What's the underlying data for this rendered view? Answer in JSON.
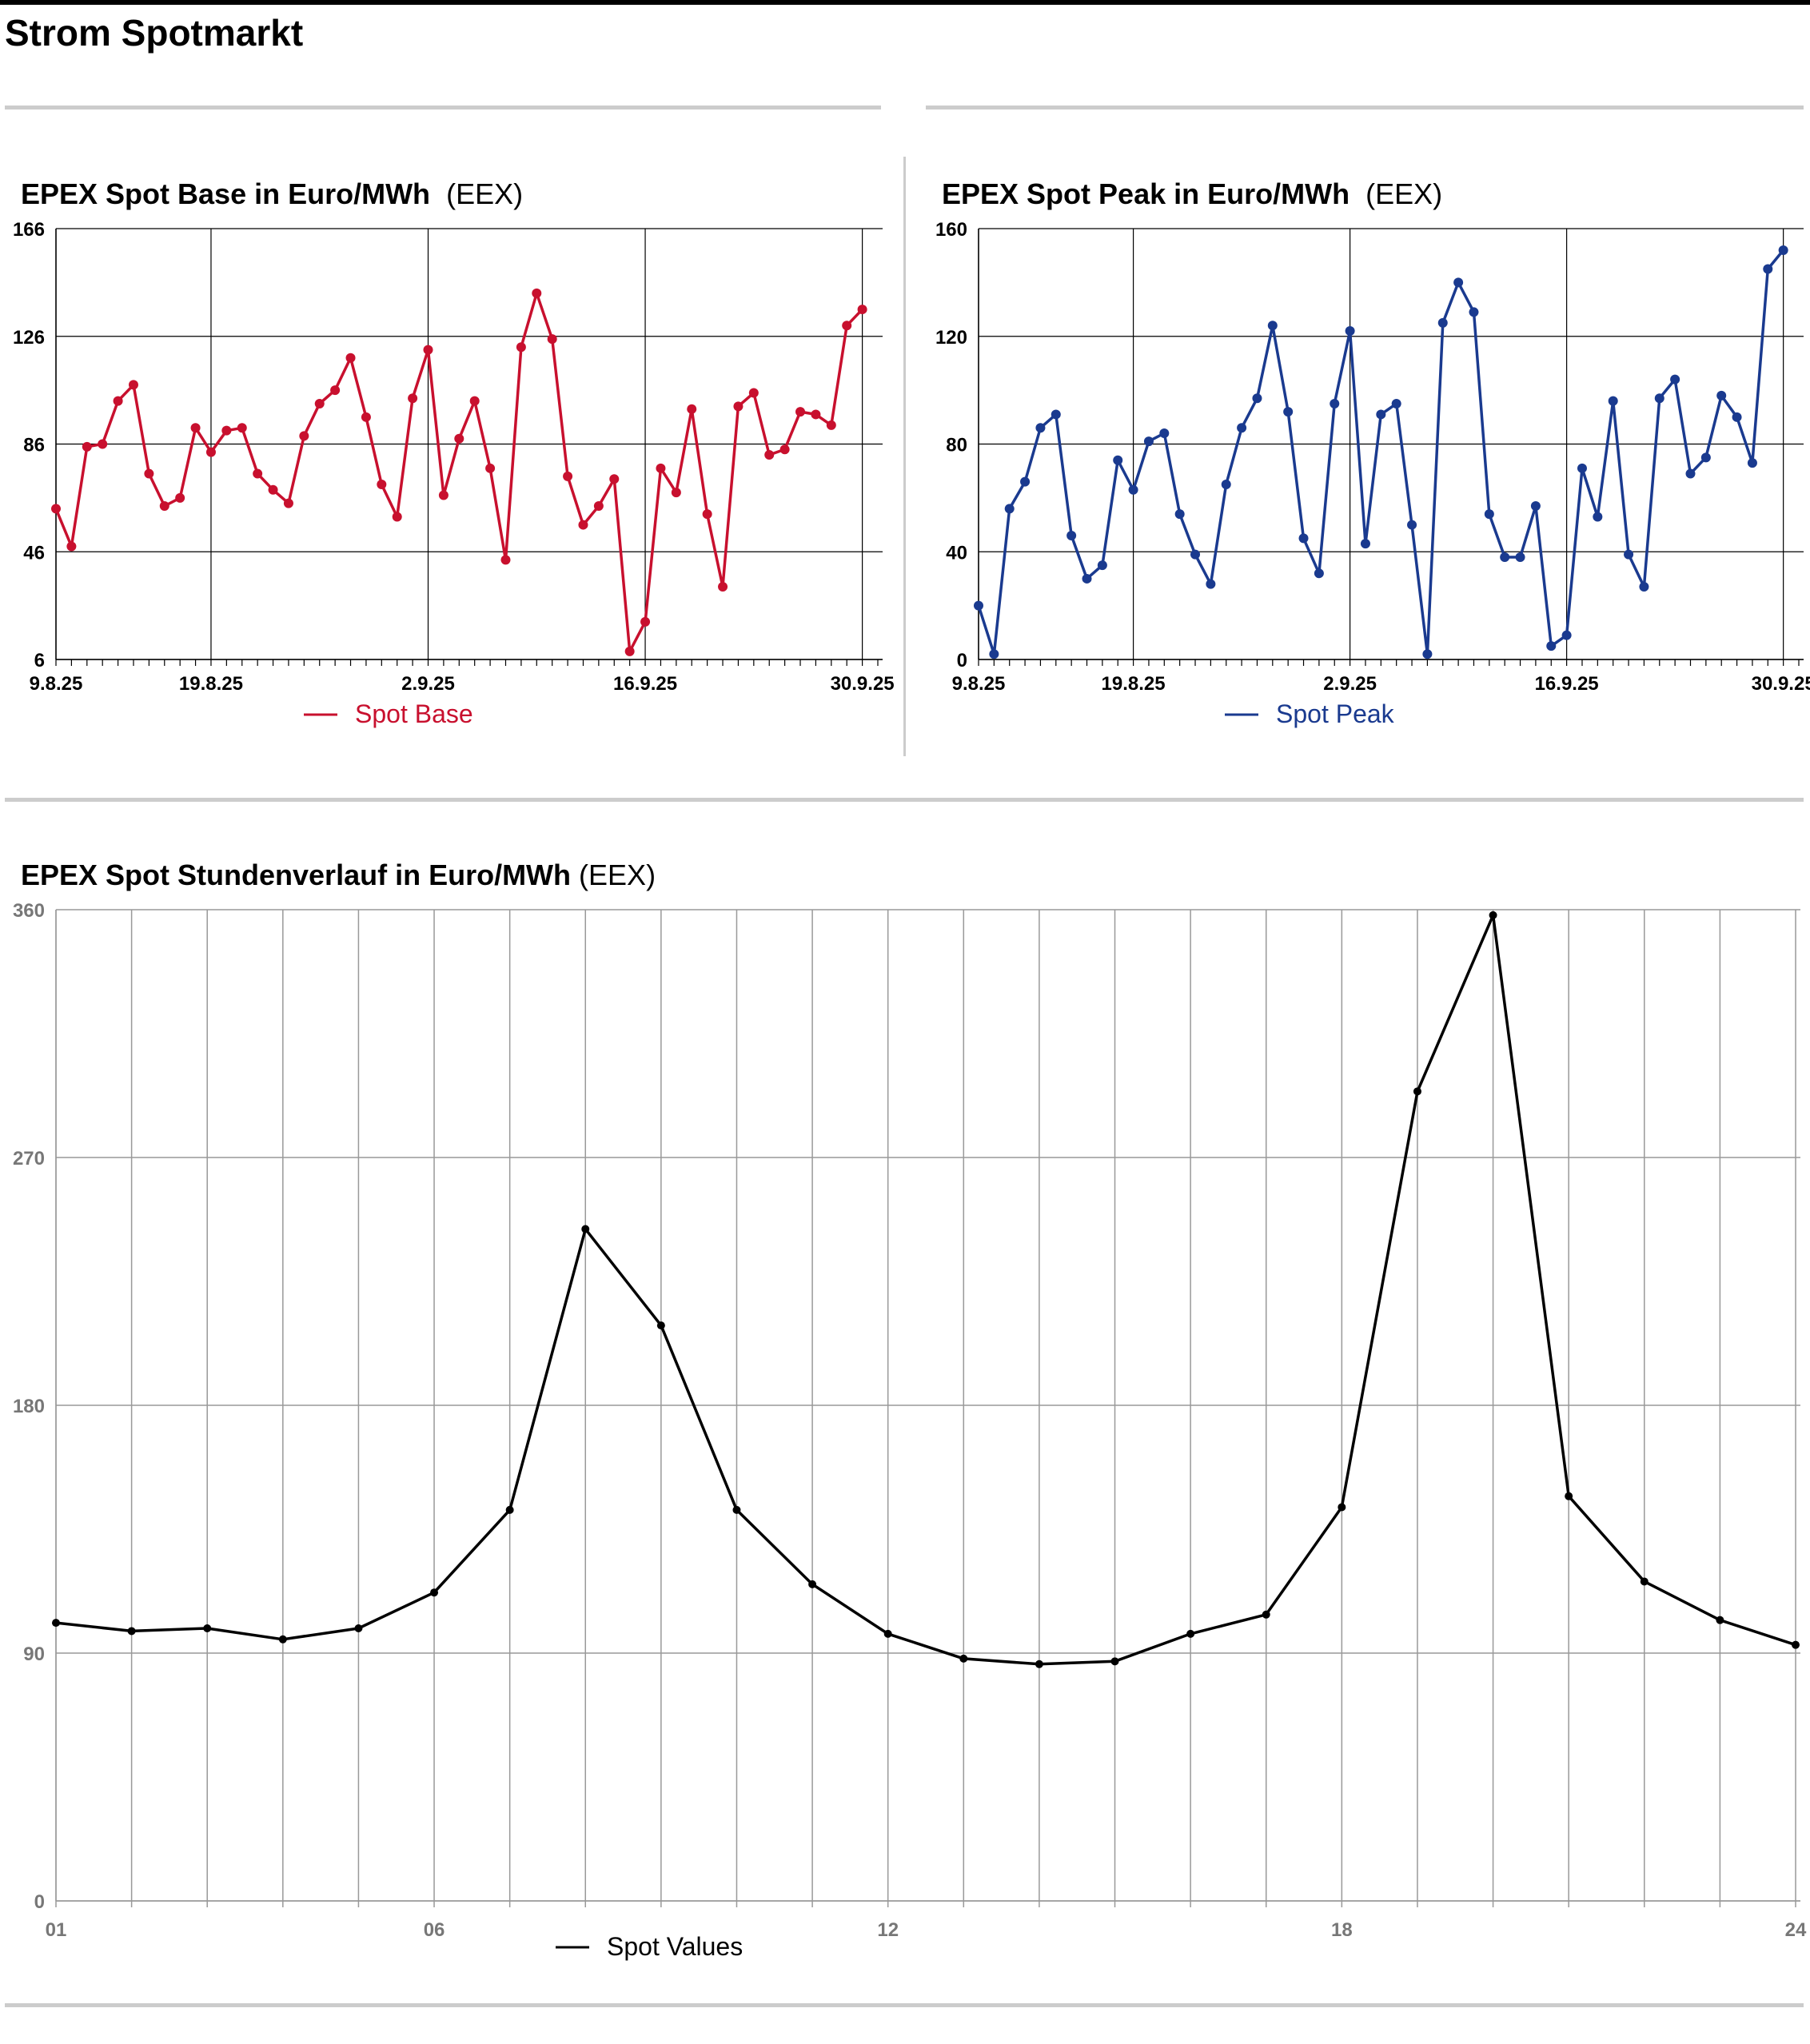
{
  "page": {
    "title": "Strom Spotmarkt"
  },
  "chart_data": [
    {
      "id": "base",
      "type": "line",
      "title": "EPEX Spot Base in Euro/MWh",
      "source": "(EEX)",
      "xlabel": "",
      "ylabel": "",
      "x_ticks": [
        "9.8.25",
        "19.8.25",
        "2.9.25",
        "16.9.25",
        "30.9.25"
      ],
      "x_tick_index": [
        0,
        10,
        24,
        38,
        52
      ],
      "ylim": [
        6,
        166
      ],
      "y_ticks": [
        6,
        46,
        86,
        126,
        166
      ],
      "grid": true,
      "legend": "bottom-center",
      "color": "#c8102e",
      "series": [
        {
          "name": "Spot Base",
          "values": [
            62,
            48,
            85,
            86,
            102,
            108,
            75,
            63,
            66,
            92,
            83,
            91,
            92,
            75,
            69,
            64,
            89,
            101,
            106,
            118,
            96,
            71,
            59,
            103,
            121,
            67,
            88,
            102,
            77,
            43,
            122,
            142,
            125,
            74,
            56,
            63,
            73,
            9,
            20,
            77,
            68,
            99,
            60,
            33,
            100,
            105,
            82,
            84,
            98,
            97,
            93,
            130,
            136
          ]
        }
      ]
    },
    {
      "id": "peak",
      "type": "line",
      "title": "EPEX Spot Peak in Euro/MWh",
      "source": "(EEX)",
      "xlabel": "",
      "ylabel": "",
      "x_ticks": [
        "9.8.25",
        "19.8.25",
        "2.9.25",
        "16.9.25",
        "30.9.25"
      ],
      "x_tick_index": [
        0,
        10,
        24,
        38,
        52
      ],
      "ylim": [
        0,
        160
      ],
      "y_ticks": [
        0,
        40,
        80,
        120,
        160
      ],
      "grid": true,
      "legend": "bottom-center",
      "color": "#1a3a8f",
      "series": [
        {
          "name": "Spot Peak",
          "values": [
            20,
            2,
            56,
            66,
            86,
            91,
            46,
            30,
            35,
            74,
            63,
            81,
            84,
            54,
            39,
            28,
            65,
            86,
            97,
            124,
            92,
            45,
            32,
            95,
            122,
            43,
            91,
            95,
            50,
            2,
            125,
            140,
            129,
            54,
            38,
            38,
            57,
            5,
            9,
            71,
            53,
            96,
            39,
            27,
            97,
            104,
            69,
            75,
            98,
            90,
            73,
            145,
            152
          ]
        }
      ]
    },
    {
      "id": "hourly",
      "type": "line",
      "title": "EPEX Spot Stundenverlauf in Euro/MWh",
      "source": "(EEX)",
      "xlabel": "",
      "ylabel": "",
      "x_ticks": [
        "01",
        "06",
        "12",
        "18",
        "24"
      ],
      "x": [
        1,
        2,
        3,
        4,
        5,
        6,
        7,
        8,
        9,
        10,
        11,
        12,
        13,
        14,
        15,
        16,
        17,
        18,
        19,
        20,
        21,
        22,
        23,
        24
      ],
      "xlim": [
        1,
        24
      ],
      "ylim": [
        0,
        360
      ],
      "y_ticks": [
        0,
        90,
        180,
        270,
        360
      ],
      "grid": true,
      "legend": "bottom-center",
      "color": "#000000",
      "series": [
        {
          "name": "Spot Values",
          "values": [
            101,
            98,
            99,
            95,
            99,
            112,
            142,
            244,
            209,
            142,
            115,
            97,
            88,
            86,
            87,
            97,
            104,
            143,
            294,
            358,
            147,
            116,
            102,
            93
          ]
        }
      ]
    }
  ]
}
